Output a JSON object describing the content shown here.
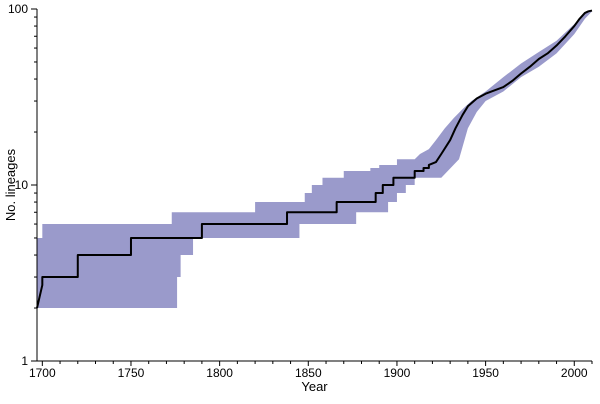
{
  "chart_data": {
    "type": "line",
    "title": "",
    "xlabel": "Year",
    "ylabel": "No. lineages",
    "xlim": [
      1697,
      2010
    ],
    "ylim": [
      1,
      100
    ],
    "y_scale": "log",
    "grid": false,
    "legend": "none",
    "x_ticks": [
      1700,
      1750,
      1800,
      1850,
      1900,
      1950,
      2000
    ],
    "x_tick_labels": [
      "1700",
      "1750",
      "1800",
      "1850",
      "1900",
      "1950",
      "2000"
    ],
    "y_major_ticks": [
      1,
      10,
      100
    ],
    "y_major_tick_labels": [
      "1",
      "10",
      "100"
    ],
    "colors": {
      "band": "#9a9acb",
      "line": "#000000"
    },
    "series": [
      {
        "role": "median",
        "x": [
          1697,
          1700,
          1700,
          1720,
          1720,
          1750,
          1750,
          1790,
          1790,
          1838,
          1838,
          1866,
          1866,
          1888,
          1888,
          1892,
          1892,
          1898,
          1898,
          1910,
          1910,
          1915,
          1915,
          1918,
          1918,
          1922,
          1925,
          1930,
          1933,
          1937,
          1940,
          1945,
          1950,
          1960,
          1965,
          1970,
          1975,
          1980,
          1985,
          1990,
          1995,
          2000,
          2003,
          2006,
          2008,
          2010
        ],
        "y": [
          2,
          2.7,
          3,
          3,
          4,
          4,
          5,
          5,
          6,
          6,
          7,
          7,
          8,
          8,
          9,
          9,
          10,
          10,
          11,
          11,
          12,
          12,
          12.5,
          12.5,
          13,
          13.5,
          15,
          18,
          21,
          25,
          28,
          31,
          33,
          36,
          39,
          43,
          47,
          52,
          56,
          62,
          70,
          80,
          88,
          95,
          97,
          98
        ]
      },
      {
        "role": "upper",
        "x": [
          1697,
          1700,
          1700,
          1773,
          1773,
          1820,
          1820,
          1848,
          1848,
          1852,
          1852,
          1858,
          1858,
          1870,
          1870,
          1885,
          1885,
          1890,
          1890,
          1900,
          1900,
          1910,
          1913,
          1918,
          1922,
          1927,
          1932,
          1937,
          1942,
          1950,
          1960,
          1970,
          1980,
          1990,
          2000,
          2006,
          2010
        ],
        "y": [
          5,
          5,
          6,
          6,
          7,
          7,
          8,
          8,
          9,
          9,
          10,
          10,
          11,
          11,
          12,
          12,
          12.5,
          12.5,
          13,
          13,
          14,
          14,
          15,
          16,
          18,
          21,
          24,
          27,
          30,
          34,
          41,
          49,
          57,
          66,
          82,
          96,
          99
        ]
      },
      {
        "role": "lower",
        "x": [
          1697,
          1776,
          1776,
          1778,
          1778,
          1785,
          1785,
          1800,
          1800,
          1832,
          1832,
          1845,
          1845,
          1855,
          1855,
          1877,
          1877,
          1895,
          1895,
          1900,
          1900,
          1905,
          1905,
          1910,
          1910,
          1925,
          1935,
          1940,
          1945,
          1950,
          1960,
          1970,
          1980,
          1990,
          2000,
          2006,
          2010
        ],
        "y": [
          2,
          2,
          3,
          3,
          4,
          4,
          5,
          5,
          5,
          5,
          5,
          5,
          6,
          6,
          6,
          6,
          7,
          7,
          8,
          8,
          9,
          9,
          10,
          10,
          11,
          11,
          14,
          21,
          26,
          30,
          34,
          41,
          47,
          56,
          72,
          88,
          97
        ]
      }
    ]
  }
}
